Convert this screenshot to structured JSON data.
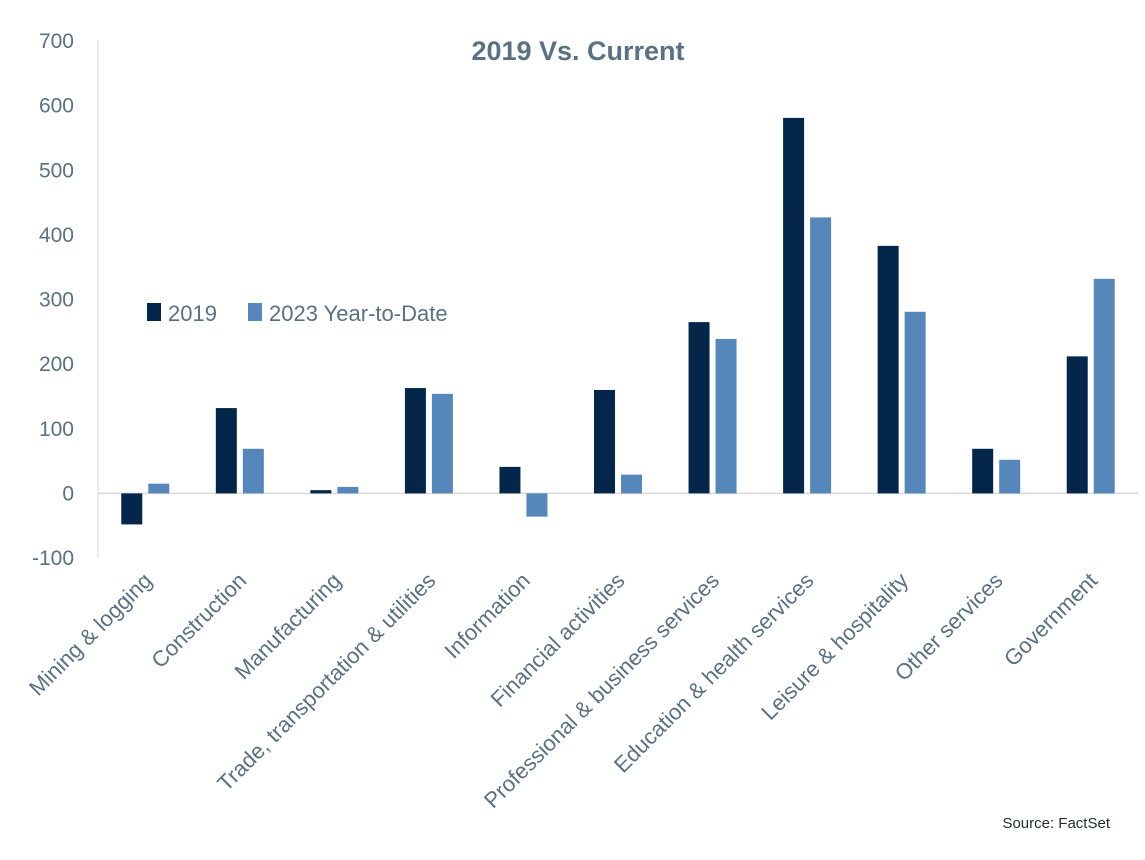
{
  "chart_data": {
    "type": "bar",
    "title": "2019 Vs. Current",
    "xlabel": "",
    "ylabel": "",
    "ylim": [
      -100,
      700
    ],
    "yticks": [
      -100,
      0,
      100,
      200,
      300,
      400,
      500,
      600,
      700
    ],
    "grid": false,
    "legend_position": "middle-left",
    "categories": [
      "Mining & logging",
      "Construction",
      "Manufacturing",
      "Trade, transportation & utilities",
      "Information",
      "Financial activities",
      "Professional & business services",
      "Education & health services",
      "Leisure & hospitality",
      "Other services",
      "Government"
    ],
    "series": [
      {
        "name": "2019",
        "color": "#03264a",
        "values": [
          -48,
          132,
          5,
          163,
          41,
          160,
          265,
          581,
          383,
          69,
          212
        ]
      },
      {
        "name": "2023 Year-to-Date",
        "color": "#5587bb",
        "values": [
          15,
          69,
          10,
          154,
          -36,
          29,
          239,
          427,
          281,
          52,
          332
        ]
      }
    ],
    "source": "Source: FactSet"
  }
}
